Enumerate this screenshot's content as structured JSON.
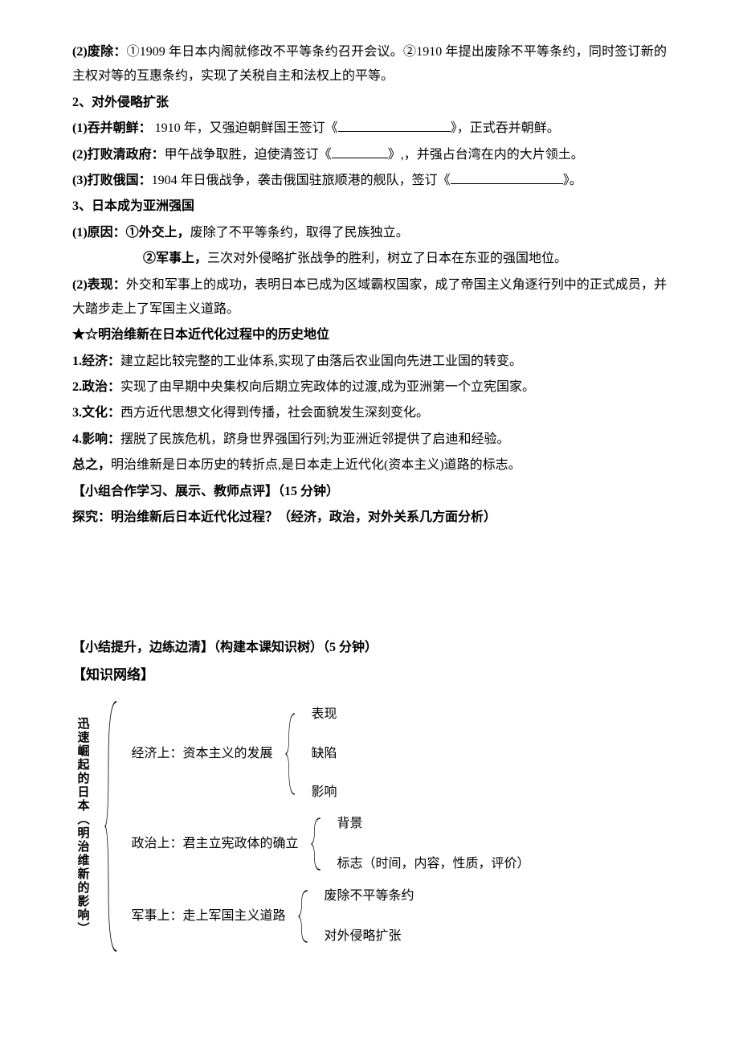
{
  "colors": {
    "text": "#000000",
    "bg": "#ffffff",
    "line": "#000000"
  },
  "fonts": {
    "body_size": 16,
    "line_height": 1.9
  },
  "p1": {
    "label": "(2)废除：",
    "text": "①1909 年日本内阁就修改不平等条约召开会议。②1910 年提出废除不平等条约，同时签订新的主权对等的互惠条约，实现了关税自主和法权上的平等。"
  },
  "h2": "2、对外侵略扩张",
  "p2": {
    "label": "(1)吞并朝鲜：",
    "pre": " 1910 年，又强迫朝鲜国王签订《",
    "post": "》，正式吞并朝鲜。"
  },
  "p3": {
    "label": "(2)打败清政府：",
    "pre": "甲午战争取胜，迫使清签订《",
    "mid": "》,，并强占台湾在内的大片领土。"
  },
  "p4": {
    "label": "(3)打败俄国：",
    "pre": "1904 年日俄战争，袭击俄国驻旅顺港的舰队，签订《",
    "post": "》。"
  },
  "h3": "3、日本成为亚洲强国",
  "p5": {
    "label": "(1)原因：",
    "b1": "①外交上，",
    "t1": "废除了不平等条约，取得了民族独立。"
  },
  "p6": {
    "b2": "②军事上，",
    "t2": "三次对外侵略扩张战争的胜利，树立了日本在东亚的强国地位。"
  },
  "p7": {
    "label": "(2)表现：",
    "text": "外交和军事上的成功，表明日本已成为区域霸权国家，成了帝国主义角逐行列中的正式成员，并大踏步走上了军国主义道路。"
  },
  "star": "★☆明治维新在日本近代化过程中的历史地位",
  "l1": {
    "label": "1.经济：",
    "text": "建立起比较完整的工业体系,实现了由落后农业国向先进工业国的转变。"
  },
  "l2": {
    "label": "2.政治：",
    "text": "实现了由早期中央集权向后期立宪政体的过渡,成为亚洲第一个立宪国家。"
  },
  "l3": {
    "label": "3.文化：",
    "text": "西方近代思想文化得到传播，社会面貌发生深刻变化。"
  },
  "l4": {
    "label": "4.影响：",
    "text": "摆脱了民族危机，跻身世界强国行列;为亚洲近邻提供了启迪和经验。"
  },
  "l5": {
    "label": "总之，",
    "text": "明治维新是日本历史的转折点,是日本走上近代化(资本主义)道路的标志。"
  },
  "group": {
    "title": "【小组合作学习、展示、教师点评】（15 分钟）",
    "q": "探究：明治维新后日本近代化过程？（经济，政治，对外关系几方面分析）"
  },
  "summary": "【小结提升，边练边清】（构建本课知识树）（5 分钟）",
  "net_title": "【知识网络】",
  "tree": {
    "root": "迅速崛起的日本（明治维新的影响）",
    "rows": [
      {
        "label": "经济上：资本主义的发展",
        "subs": [
          "表现",
          "缺陷",
          "影响"
        ]
      },
      {
        "label": "政治上：君主立宪政体的确立",
        "subs": [
          "背景",
          "标志（时间，内容，性质，评价）"
        ]
      },
      {
        "label": "军事上：走上军国主义道路",
        "subs": [
          "废除不平等条约",
          "对外侵略扩张"
        ]
      }
    ]
  }
}
